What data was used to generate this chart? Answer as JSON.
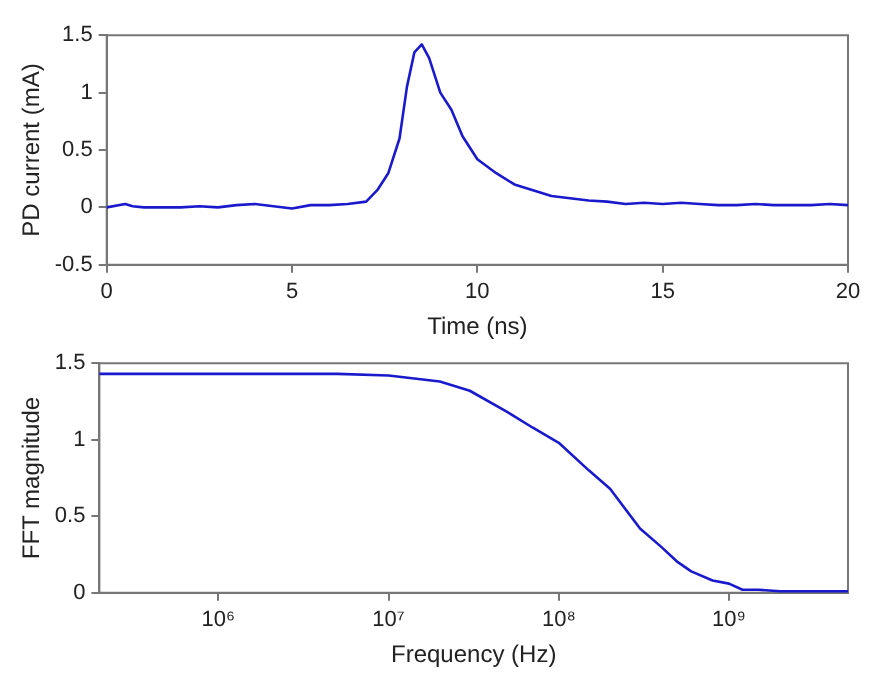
{
  "chart_data": [
    {
      "type": "line",
      "xlabel": "Time (ns)",
      "ylabel": "PD current (mA)",
      "color": "#1a1acc",
      "x": [
        0,
        0.5,
        0.7,
        1,
        1.5,
        2,
        2.5,
        3,
        3.5,
        4,
        4.5,
        5,
        5.5,
        6,
        6.5,
        7,
        7.3,
        7.6,
        7.9,
        8.1,
        8.3,
        8.5,
        8.7,
        9,
        9.3,
        9.6,
        10,
        10.5,
        11,
        11.5,
        12,
        12.5,
        13,
        13.5,
        14,
        14.5,
        15,
        15.5,
        16,
        16.5,
        17,
        17.5,
        18,
        18.5,
        19,
        19.5,
        20
      ],
      "values": [
        0,
        0.03,
        0.01,
        0,
        0,
        0,
        0.01,
        0,
        0.02,
        0.03,
        0.01,
        -0.01,
        0.02,
        0.02,
        0.03,
        0.05,
        0.15,
        0.3,
        0.6,
        1.05,
        1.35,
        1.42,
        1.3,
        1,
        0.85,
        0.62,
        0.42,
        0.3,
        0.2,
        0.15,
        0.1,
        0.08,
        0.06,
        0.05,
        0.03,
        0.04,
        0.03,
        0.04,
        0.03,
        0.02,
        0.02,
        0.03,
        0.02,
        0.02,
        0.02,
        0.03,
        0.02
      ],
      "xlim": [
        0,
        20
      ],
      "ylim": [
        -0.5,
        1.5
      ],
      "xticks": [
        0,
        5,
        10,
        15,
        20
      ],
      "yticks": [
        -0.5,
        0,
        0.5,
        1,
        1.5
      ],
      "grid": false
    },
    {
      "type": "line",
      "xlabel": "Frequency (Hz)",
      "ylabel": "FFT magnitude",
      "color": "#1a1acc",
      "log": "x",
      "x": [
        200000,
        1000000,
        5000000,
        10000000,
        20000000,
        30000000,
        50000000,
        70000000,
        100000000,
        150000000,
        200000000,
        300000000,
        400000000,
        500000000,
        600000000,
        800000000,
        1000000000,
        1200000000,
        1500000000,
        2000000000,
        5000000000
      ],
      "values": [
        1.43,
        1.43,
        1.43,
        1.42,
        1.38,
        1.32,
        1.18,
        1.08,
        0.98,
        0.8,
        0.68,
        0.42,
        0.3,
        0.2,
        0.14,
        0.08,
        0.06,
        0.02,
        0.02,
        0.01,
        0.01
      ],
      "xlim": [
        200000,
        5000000000
      ],
      "ylim": [
        0,
        1.5
      ],
      "xticks": [
        {
          "value": 1000000,
          "label": "10⁶"
        },
        {
          "value": 10000000,
          "label": "10⁷"
        },
        {
          "value": 100000000,
          "label": "10⁸"
        },
        {
          "value": 1000000000,
          "label": "10⁹"
        }
      ],
      "yticks": [
        0,
        0.5,
        1,
        1.5
      ],
      "grid": false
    }
  ]
}
